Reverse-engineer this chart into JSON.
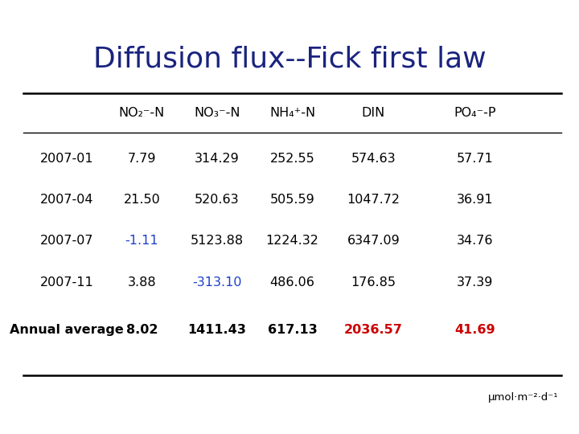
{
  "title": "Diffusion flux--Fick first law",
  "title_color": "#1a237e",
  "title_fontsize": 26,
  "col_headers_raw": [
    "NO2-N",
    "NO3-N",
    "NH4+-N",
    "DIN",
    "PO4-P"
  ],
  "col_headers_main": [
    "NO",
    "NO",
    "NH",
    "DIN",
    "PO"
  ],
  "col_headers_sub": [
    "2",
    "3",
    "4",
    "",
    "4"
  ],
  "col_headers_sup": [
    "⁻",
    "⁻",
    "⁺",
    "",
    "⁻"
  ],
  "col_headers_suffix": [
    "-N",
    "-N",
    "-N",
    "",
    "-P"
  ],
  "row_labels": [
    "2007-01",
    "2007-04",
    "2007-07",
    "2007-11",
    "Annual average"
  ],
  "table_data": [
    [
      "7.79",
      "314.29",
      "252.55",
      "574.63",
      "57.71"
    ],
    [
      "21.50",
      "520.63",
      "505.59",
      "1047.72",
      "36.91"
    ],
    [
      "-1.11",
      "5123.88",
      "1224.32",
      "6347.09",
      "34.76"
    ],
    [
      "3.88",
      "-313.10",
      "486.06",
      "176.85",
      "37.39"
    ],
    [
      "8.02",
      "1411.43",
      "617.13",
      "2036.57",
      "41.69"
    ]
  ],
  "cell_colors": [
    [
      "#000000",
      "#000000",
      "#000000",
      "#000000",
      "#000000"
    ],
    [
      "#000000",
      "#000000",
      "#000000",
      "#000000",
      "#000000"
    ],
    [
      "#1e3fcc",
      "#000000",
      "#000000",
      "#000000",
      "#000000"
    ],
    [
      "#000000",
      "#1e3fcc",
      "#000000",
      "#000000",
      "#000000"
    ],
    [
      "#000000",
      "#000000",
      "#000000",
      "#cc0000",
      "#cc0000"
    ]
  ],
  "unit_text": "μmol·m⁻²·d⁻¹",
  "background_color": "#ffffff",
  "col_header_color": "#000000",
  "row_label_color": "#000000",
  "row_label_bold": [
    false,
    false,
    false,
    false,
    false
  ],
  "annual_avg_bold": true
}
